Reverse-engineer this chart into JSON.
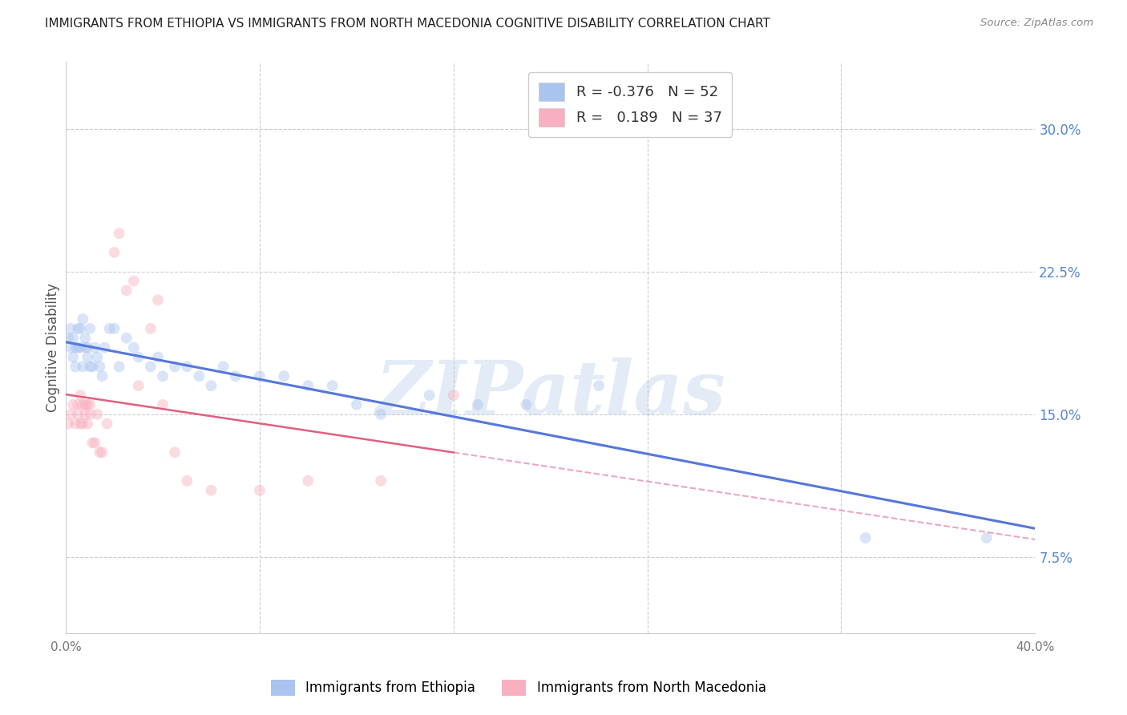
{
  "title": "IMMIGRANTS FROM ETHIOPIA VS IMMIGRANTS FROM NORTH MACEDONIA COGNITIVE DISABILITY CORRELATION CHART",
  "source": "Source: ZipAtlas.com",
  "ylabel": "Cognitive Disability",
  "ylabel_right_ticks": [
    "7.5%",
    "15.0%",
    "22.5%",
    "30.0%"
  ],
  "ylabel_right_vals": [
    0.075,
    0.15,
    0.225,
    0.3
  ],
  "xlim": [
    0.0,
    0.4
  ],
  "ylim": [
    0.035,
    0.335
  ],
  "grid_color": "#cccccc",
  "background_color": "#ffffff",
  "watermark_text": "ZIPatlas",
  "watermark_color": "#b0c8e8",
  "watermark_alpha": 0.35,
  "marker_size": 100,
  "marker_alpha": 0.45,
  "series1": {
    "label": "Immigrants from Ethiopia",
    "color": "#aac4f0",
    "R": -0.376,
    "N": 52,
    "line_color": "#5577dd",
    "x": [
      0.001,
      0.002,
      0.002,
      0.003,
      0.003,
      0.004,
      0.004,
      0.005,
      0.005,
      0.006,
      0.006,
      0.007,
      0.007,
      0.008,
      0.008,
      0.009,
      0.009,
      0.01,
      0.01,
      0.011,
      0.012,
      0.013,
      0.014,
      0.015,
      0.016,
      0.018,
      0.02,
      0.022,
      0.025,
      0.028,
      0.03,
      0.035,
      0.038,
      0.04,
      0.045,
      0.05,
      0.055,
      0.06,
      0.065,
      0.07,
      0.08,
      0.09,
      0.1,
      0.11,
      0.12,
      0.13,
      0.15,
      0.17,
      0.19,
      0.22,
      0.33,
      0.38
    ],
    "y": [
      0.19,
      0.185,
      0.195,
      0.18,
      0.19,
      0.175,
      0.185,
      0.195,
      0.185,
      0.195,
      0.185,
      0.2,
      0.175,
      0.185,
      0.19,
      0.185,
      0.18,
      0.175,
      0.195,
      0.175,
      0.185,
      0.18,
      0.175,
      0.17,
      0.185,
      0.195,
      0.195,
      0.175,
      0.19,
      0.185,
      0.18,
      0.175,
      0.18,
      0.17,
      0.175,
      0.175,
      0.17,
      0.165,
      0.175,
      0.17,
      0.17,
      0.17,
      0.165,
      0.165,
      0.155,
      0.15,
      0.16,
      0.155,
      0.155,
      0.165,
      0.085,
      0.085
    ]
  },
  "series2": {
    "label": "Immigrants from North Macedonia",
    "color": "#f8b0c0",
    "R": 0.189,
    "N": 37,
    "line_color": "#e06080",
    "x": [
      0.001,
      0.002,
      0.003,
      0.004,
      0.005,
      0.005,
      0.006,
      0.006,
      0.007,
      0.007,
      0.008,
      0.008,
      0.009,
      0.009,
      0.01,
      0.01,
      0.011,
      0.012,
      0.013,
      0.014,
      0.015,
      0.017,
      0.02,
      0.022,
      0.025,
      0.028,
      0.03,
      0.035,
      0.038,
      0.04,
      0.045,
      0.05,
      0.06,
      0.08,
      0.1,
      0.13,
      0.16
    ],
    "y": [
      0.145,
      0.15,
      0.155,
      0.145,
      0.155,
      0.15,
      0.145,
      0.16,
      0.145,
      0.155,
      0.15,
      0.155,
      0.145,
      0.155,
      0.15,
      0.155,
      0.135,
      0.135,
      0.15,
      0.13,
      0.13,
      0.145,
      0.235,
      0.245,
      0.215,
      0.22,
      0.165,
      0.195,
      0.21,
      0.155,
      0.13,
      0.115,
      0.11,
      0.11,
      0.115,
      0.115,
      0.16
    ]
  }
}
